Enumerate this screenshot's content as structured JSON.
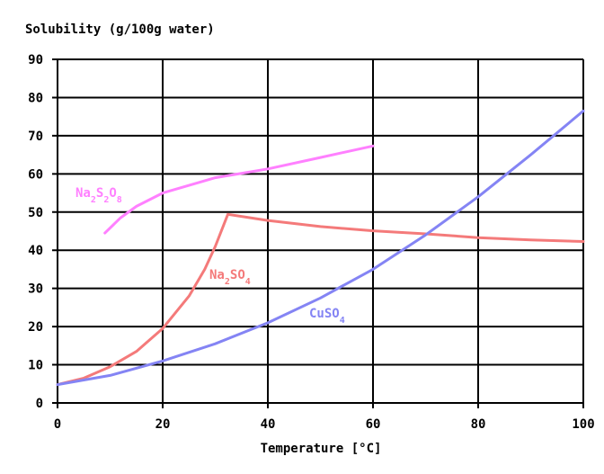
{
  "chart_data": {
    "type": "line",
    "title": "",
    "ylabel": "Solubility (g/100g water)",
    "xlabel": "Temperature [°C]",
    "xlim": [
      0,
      100
    ],
    "ylim": [
      0,
      90
    ],
    "x_ticks": [
      0,
      20,
      40,
      60,
      80,
      100
    ],
    "y_ticks": [
      0,
      10,
      20,
      30,
      40,
      50,
      60,
      70,
      80,
      90
    ],
    "grid": true,
    "legend": "inline labels",
    "series": [
      {
        "name": "Na2S2O8",
        "label_parts": [
          {
            "t": "Na",
            "sub": false
          },
          {
            "t": "2",
            "sub": true
          },
          {
            "t": "S",
            "sub": false
          },
          {
            "t": "2",
            "sub": true
          },
          {
            "t": "O",
            "sub": false
          },
          {
            "t": "8",
            "sub": true
          }
        ],
        "color": "#ff80ff",
        "points": [
          [
            9,
            44.5
          ],
          [
            12,
            48.5
          ],
          [
            15,
            51.5
          ],
          [
            20,
            55
          ],
          [
            25,
            57
          ],
          [
            30,
            59
          ],
          [
            40,
            61.3
          ],
          [
            50,
            64.3
          ],
          [
            60,
            67.3
          ]
        ]
      },
      {
        "name": "Na2SO4",
        "label_parts": [
          {
            "t": "Na",
            "sub": false
          },
          {
            "t": "2",
            "sub": true
          },
          {
            "t": "SO",
            "sub": false
          },
          {
            "t": "4",
            "sub": true
          }
        ],
        "color": "#f47a7a",
        "points": [
          [
            0,
            4.8
          ],
          [
            5,
            6.5
          ],
          [
            10,
            9.5
          ],
          [
            15,
            13.5
          ],
          [
            20,
            19.5
          ],
          [
            25,
            28
          ],
          [
            28,
            35
          ],
          [
            30,
            41
          ],
          [
            32.4,
            49.4
          ],
          [
            40,
            47.8
          ],
          [
            50,
            46.2
          ],
          [
            60,
            45.1
          ],
          [
            70,
            44.3
          ],
          [
            80,
            43.3
          ],
          [
            90,
            42.7
          ],
          [
            100,
            42.3
          ]
        ]
      },
      {
        "name": "CuSO4",
        "label_parts": [
          {
            "t": "CuSO",
            "sub": false
          },
          {
            "t": "4",
            "sub": true
          }
        ],
        "color": "#8484f4",
        "points": [
          [
            0,
            4.8
          ],
          [
            10,
            7.2
          ],
          [
            20,
            11
          ],
          [
            30,
            15.5
          ],
          [
            40,
            21
          ],
          [
            50,
            27.5
          ],
          [
            60,
            35
          ],
          [
            70,
            44
          ],
          [
            80,
            54
          ],
          [
            90,
            65
          ],
          [
            100,
            76.5
          ]
        ]
      }
    ]
  }
}
